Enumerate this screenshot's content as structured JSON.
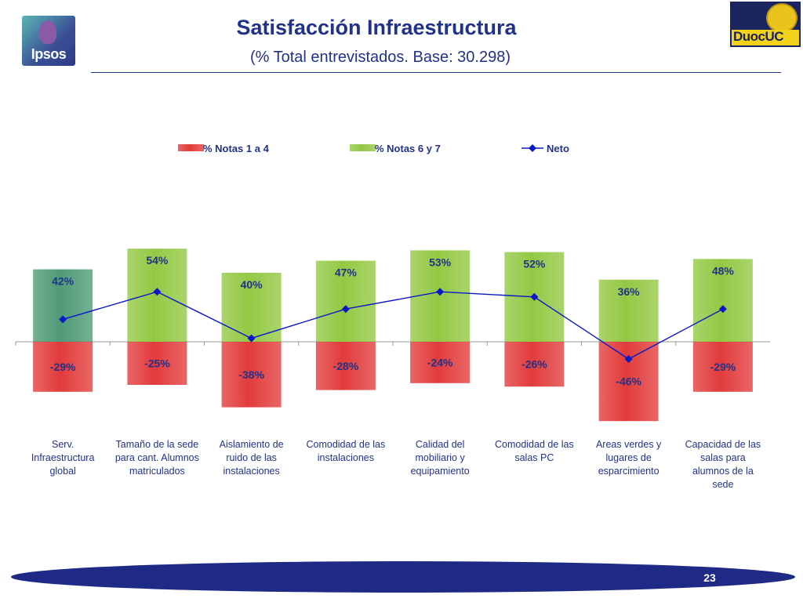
{
  "header": {
    "title": "Satisfacción Infraestructura",
    "subtitle": "(% Total entrevistados. Base: 30.298)",
    "logo_left": "Ipsos",
    "logo_right": "DuocUC"
  },
  "footer": {
    "page_number": "23"
  },
  "colors": {
    "negative": "#e23b3b",
    "positive": "#93c843",
    "positive_first": "#4f9a77",
    "line": "#0a18c8",
    "text": "#22328a"
  },
  "chart_data": {
    "type": "bar",
    "categories": [
      "Serv. Infraestructura global",
      "Tamaño de la sede para cant. Alumnos matriculados",
      "Aislamiento de ruido de las instalaciones",
      "Comodidad de las instalaciones",
      "Calidad del mobiliario y equipamiento",
      "Comodidad de las salas PC",
      "Areas verdes y lugares de esparcimiento",
      "Capacidad de las salas para alumnos de la sede"
    ],
    "category_lines": [
      [
        "Serv.",
        "Infraestructura",
        "global"
      ],
      [
        "Tamaño de la sede",
        "para cant. Alumnos",
        "matriculados"
      ],
      [
        "Aislamiento de",
        "ruido de las",
        "instalaciones"
      ],
      [
        "Comodidad de las",
        "instalaciones"
      ],
      [
        "Calidad del",
        "mobiliario y",
        "equipamiento"
      ],
      [
        "Comodidad de las",
        "salas PC"
      ],
      [
        "Areas verdes y",
        "lugares de",
        "esparcimiento"
      ],
      [
        "Capacidad de las",
        "salas para",
        "alumnos de la",
        "sede"
      ]
    ],
    "series": [
      {
        "name": "% Notas 1 a 4",
        "kind": "bar",
        "values": [
          -29,
          -25,
          -38,
          -28,
          -24,
          -26,
          -46,
          -29
        ],
        "labels": [
          "-29%",
          "-25%",
          "-38%",
          "-28%",
          "-24%",
          "-26%",
          "-46%",
          "-29%"
        ]
      },
      {
        "name": "% Notas 6 y 7",
        "kind": "bar",
        "values": [
          42,
          54,
          40,
          47,
          53,
          52,
          36,
          48
        ],
        "labels": [
          "42%",
          "54%",
          "40%",
          "47%",
          "53%",
          "52%",
          "36%",
          "48%"
        ]
      },
      {
        "name": "Neto",
        "kind": "line",
        "values": [
          13,
          29,
          2,
          19,
          29,
          26,
          -10,
          19
        ]
      }
    ],
    "legend_position": "top",
    "grid": false
  }
}
